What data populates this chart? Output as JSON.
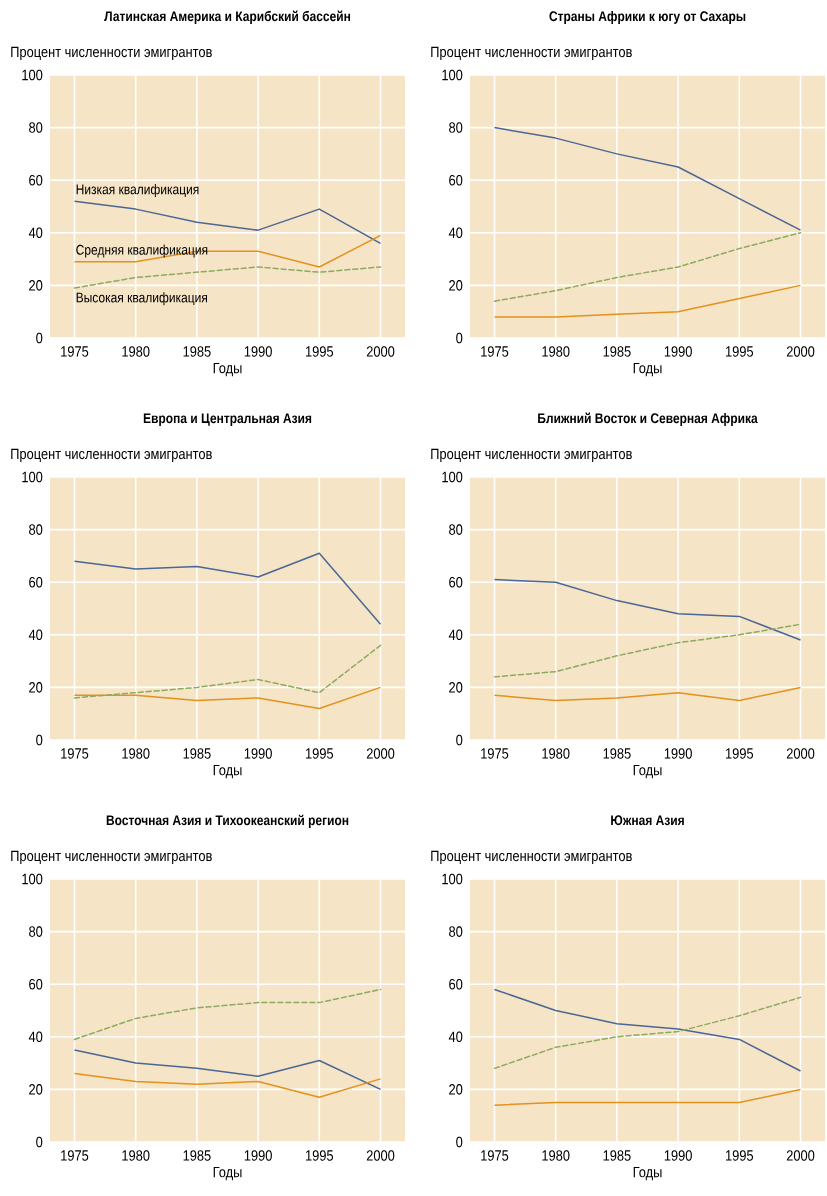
{
  "chart_data": [
    {
      "type": "line",
      "title": "Латинская Америка и Карибский бассейн",
      "ylabel": "Процент численности эмигрантов",
      "xlabel": "Годы",
      "x": [
        1975,
        1980,
        1985,
        1990,
        1995,
        2000
      ],
      "xlim": [
        1973,
        2002
      ],
      "ylim": [
        0,
        100
      ],
      "xticks": [
        1975,
        1980,
        1985,
        1990,
        1995,
        2000
      ],
      "yticks": [
        0,
        20,
        40,
        60,
        80,
        100
      ],
      "grid": true,
      "line_style": "solid",
      "series": [
        {
          "name": "Низкая квалификация",
          "color": "#4a6795",
          "values": [
            52,
            49,
            44,
            41,
            49,
            36
          ]
        },
        {
          "name": "Средняя квалификация",
          "color": "#e3921e",
          "values": [
            29,
            29,
            33,
            33,
            27,
            39
          ]
        },
        {
          "name": "Высокая квалификация",
          "color": "#8cab60",
          "line_style": "dashed",
          "values": [
            19,
            23,
            25,
            27,
            25,
            27
          ]
        }
      ]
    },
    {
      "type": "line",
      "title": "Страны Африки к югу от Сахары",
      "ylabel": "Процент численности эмигрантов",
      "xlabel": "Годы",
      "x": [
        1975,
        1980,
        1985,
        1990,
        1995,
        2000
      ],
      "xlim": [
        1973,
        2002
      ],
      "ylim": [
        0,
        100
      ],
      "xticks": [
        1975,
        1980,
        1985,
        1990,
        1995,
        2000
      ],
      "yticks": [
        0,
        20,
        40,
        60,
        80,
        100
      ],
      "grid": true,
      "line_style": "solid",
      "series": [
        {
          "color": "#4a6795",
          "values": [
            80,
            76,
            70,
            65,
            53,
            41
          ]
        },
        {
          "color": "#e3921e",
          "values": [
            8,
            8,
            9,
            10,
            15,
            20
          ]
        },
        {
          "color": "#8cab60",
          "line_style": "dashed",
          "values": [
            14,
            18,
            23,
            27,
            34,
            40
          ]
        }
      ]
    },
    {
      "type": "line",
      "title": "Европа и Центральная Азия",
      "ylabel": "Процент численности эмигрантов",
      "xlabel": "Годы",
      "x": [
        1975,
        1980,
        1985,
        1990,
        1995,
        2000
      ],
      "xlim": [
        1973,
        2002
      ],
      "ylim": [
        0,
        100
      ],
      "xticks": [
        1975,
        1980,
        1985,
        1990,
        1995,
        2000
      ],
      "yticks": [
        0,
        20,
        40,
        60,
        80,
        100
      ],
      "grid": true,
      "line_style": "solid",
      "series": [
        {
          "color": "#4a6795",
          "values": [
            68,
            65,
            66,
            62,
            71,
            44
          ]
        },
        {
          "color": "#e3921e",
          "values": [
            17,
            17,
            15,
            16,
            12,
            20
          ]
        },
        {
          "color": "#8cab60",
          "line_style": "dashed",
          "values": [
            16,
            18,
            20,
            23,
            18,
            36
          ]
        }
      ]
    },
    {
      "type": "line",
      "title": "Ближний Восток и Северная Африка",
      "ylabel": "Процент численности эмигрантов",
      "xlabel": "Годы",
      "x": [
        1975,
        1980,
        1985,
        1990,
        1995,
        2000
      ],
      "xlim": [
        1973,
        2002
      ],
      "ylim": [
        0,
        100
      ],
      "xticks": [
        1975,
        1980,
        1985,
        1990,
        1995,
        2000
      ],
      "yticks": [
        0,
        20,
        40,
        60,
        80,
        100
      ],
      "grid": true,
      "line_style": "solid",
      "series": [
        {
          "color": "#4a6795",
          "values": [
            61,
            60,
            53,
            48,
            47,
            38
          ]
        },
        {
          "color": "#e3921e",
          "values": [
            17,
            15,
            16,
            18,
            15,
            20
          ]
        },
        {
          "color": "#8cab60",
          "line_style": "dashed",
          "values": [
            24,
            26,
            32,
            37,
            40,
            44
          ]
        }
      ]
    },
    {
      "type": "line",
      "title": "Восточная Азия и Тихоокеанский регион",
      "ylabel": "Процент численности эмигрантов",
      "xlabel": "Годы",
      "x": [
        1975,
        1980,
        1985,
        1990,
        1995,
        2000
      ],
      "xlim": [
        1973,
        2002
      ],
      "ylim": [
        0,
        100
      ],
      "xticks": [
        1975,
        1980,
        1985,
        1990,
        1995,
        2000
      ],
      "yticks": [
        0,
        20,
        40,
        60,
        80,
        100
      ],
      "grid": true,
      "line_style": "solid",
      "series": [
        {
          "color": "#4a6795",
          "values": [
            35,
            30,
            28,
            25,
            31,
            20
          ]
        },
        {
          "color": "#e3921e",
          "values": [
            26,
            23,
            22,
            23,
            17,
            24
          ]
        },
        {
          "color": "#8cab60",
          "line_style": "dashed",
          "values": [
            39,
            47,
            51,
            53,
            53,
            58
          ]
        }
      ]
    },
    {
      "type": "line",
      "title": "Южная Азия",
      "ylabel": "Процент численности эмигрантов",
      "xlabel": "Годы",
      "x": [
        1975,
        1980,
        1985,
        1990,
        1995,
        2000
      ],
      "xlim": [
        1973,
        2002
      ],
      "ylim": [
        0,
        100
      ],
      "xticks": [
        1975,
        1980,
        1985,
        1990,
        1995,
        2000
      ],
      "yticks": [
        0,
        20,
        40,
        60,
        80,
        100
      ],
      "grid": true,
      "line_style": "solid",
      "series": [
        {
          "color": "#4a6795",
          "values": [
            58,
            50,
            45,
            43,
            39,
            27
          ]
        },
        {
          "color": "#e3921e",
          "values": [
            14,
            15,
            15,
            15,
            15,
            20
          ]
        },
        {
          "color": "#8cab60",
          "line_style": "dashed",
          "values": [
            28,
            36,
            40,
            42,
            48,
            55
          ]
        }
      ]
    }
  ]
}
